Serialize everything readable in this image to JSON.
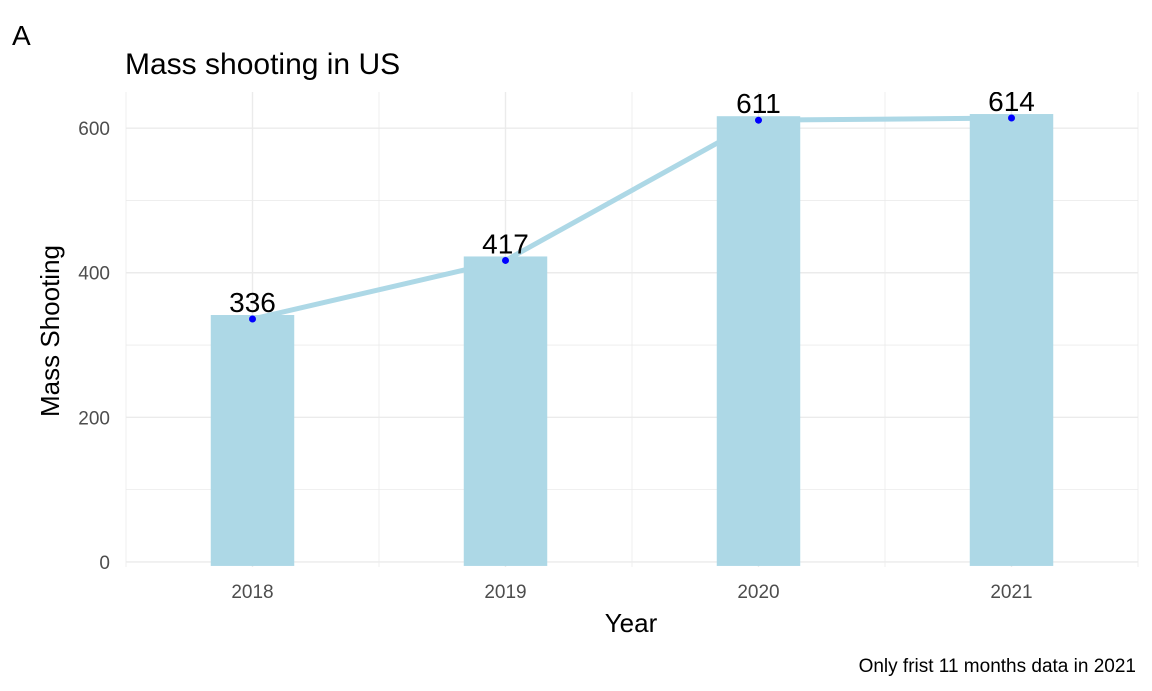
{
  "panel_label": "A",
  "chart_data": {
    "type": "bar",
    "title": "Mass shooting in US",
    "xlabel": "Year",
    "ylabel": "Mass Shooting",
    "caption": "Only frist 11 months data in 2021",
    "categories": [
      "2018",
      "2019",
      "2020",
      "2021"
    ],
    "values": [
      336,
      417,
      611,
      614
    ],
    "data_labels": [
      "336",
      "417",
      "611",
      "614"
    ],
    "overlay_line": true,
    "ylim": [
      -7,
      650
    ],
    "yticks": [
      0,
      200,
      400,
      600
    ],
    "grid": true,
    "colors": {
      "bar": "#add8e6",
      "line": "#add8e6",
      "point": "#0000ff",
      "grid": "#ebebeb",
      "tick_text": "#4d4d4d",
      "text": "#000000"
    }
  }
}
